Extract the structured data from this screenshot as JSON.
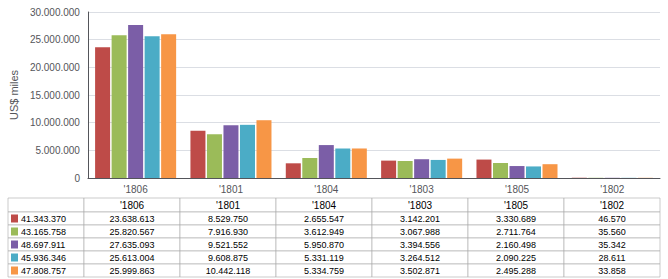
{
  "chart_data": {
    "type": "bar",
    "categories": [
      "'1806",
      "'1801",
      "'1804",
      "'1803",
      "'1805",
      "'1802"
    ],
    "series": [
      {
        "name": "41.343.370",
        "color": "#BE4B48",
        "values": [
          23638613,
          8529750,
          2655547,
          3142201,
          3330689,
          46570
        ],
        "value_labels": [
          "23.638.613",
          "8.529.750",
          "2.655.547",
          "3.142.201",
          "3.330.689",
          "46.570"
        ]
      },
      {
        "name": "43.165.758",
        "color": "#9BBB59",
        "values": [
          25820567,
          7916930,
          3612949,
          3067988,
          2711764,
          35560
        ],
        "value_labels": [
          "25.820.567",
          "7.916.930",
          "3.612.949",
          "3.067.988",
          "2.711.764",
          "35.560"
        ]
      },
      {
        "name": "48.697.911",
        "color": "#7B5EA7",
        "values": [
          27635093,
          9521552,
          5950870,
          3394556,
          2160498,
          35342
        ],
        "value_labels": [
          "27.635.093",
          "9.521.552",
          "5.950.870",
          "3.394.556",
          "2.160.498",
          "35.342"
        ]
      },
      {
        "name": "45.936.346",
        "color": "#4BACC6",
        "values": [
          25613004,
          9608875,
          5331119,
          3264512,
          2090225,
          28611
        ],
        "value_labels": [
          "25.613.004",
          "9.608.875",
          "5.331.119",
          "3.264.512",
          "2.090.225",
          "28.611"
        ]
      },
      {
        "name": "47.808.757",
        "color": "#F79646",
        "values": [
          25999863,
          10442118,
          5334759,
          3502871,
          2495288,
          33858
        ],
        "value_labels": [
          "25.999.863",
          "10.442.118",
          "5.334.759",
          "3.502.871",
          "2.495.288",
          "33.858"
        ]
      }
    ],
    "ylabel": "US$ miles",
    "ylim": [
      0,
      30000000
    ],
    "yticks": [
      0,
      {
        "value": 5000000,
        "label": "5.000.000"
      },
      {
        "value": 10000000,
        "label": "10.000.000"
      },
      {
        "value": 15000000,
        "label": "15.000.000"
      },
      {
        "value": 20000000,
        "label": "20.000.000"
      },
      {
        "value": 25000000,
        "label": "25.000.000"
      },
      {
        "value": 30000000,
        "label": "30.000.000"
      }
    ],
    "grid": true
  }
}
